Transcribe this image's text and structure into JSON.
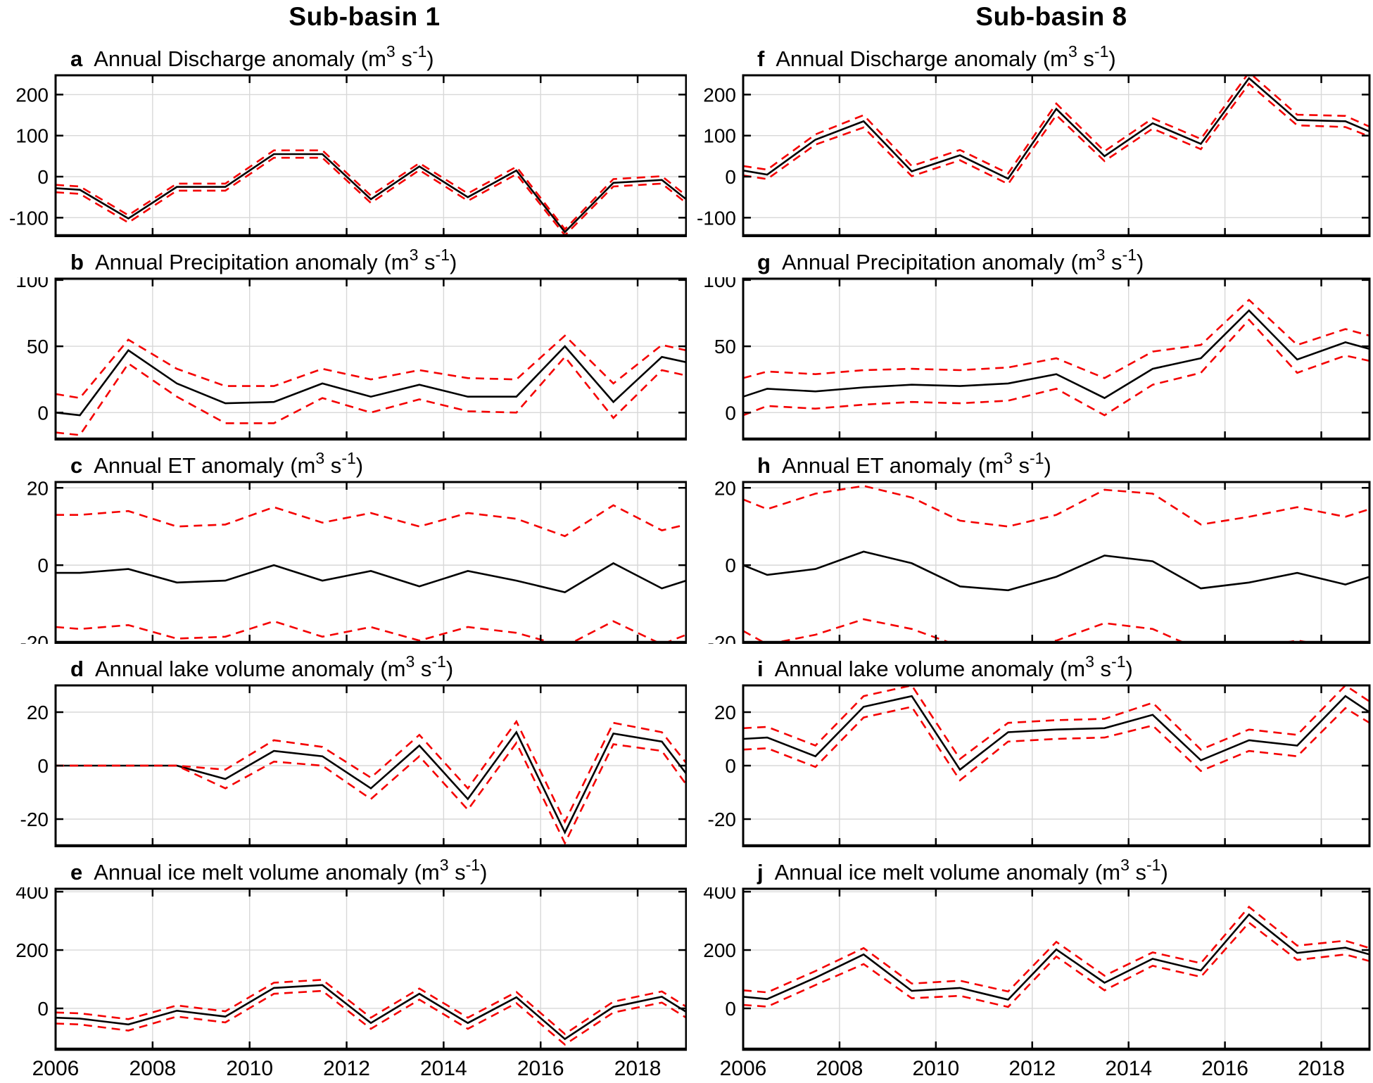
{
  "titles": [
    "Sub-basin 1",
    "Sub-basin 8"
  ],
  "unit": {
    "prefix": "(m",
    "sup1": "3",
    "mid": " s",
    "sup2": "-1",
    "suffix": ")"
  },
  "colors": {
    "mean_line": "#000000",
    "bound_line": "#f40000",
    "grid": "#d8d8d8",
    "axis": "#000000"
  },
  "axis": {
    "xlim": [
      2006,
      2019
    ],
    "x_points": [
      2006,
      2006.5,
      2007.5,
      2008.5,
      2009.5,
      2010.5,
      2011.5,
      2012.5,
      2013.5,
      2014.5,
      2015.5,
      2016.5,
      2017.5,
      2018.5,
      2019
    ],
    "xticks": [
      2006,
      2008,
      2010,
      2012,
      2014,
      2016,
      2018
    ],
    "xtick_labels": [
      "2006",
      "2008",
      "2010",
      "2012",
      "2014",
      "2016",
      "2018"
    ],
    "grid": true,
    "legend": "none"
  },
  "chart_data": [
    {
      "id": "a",
      "letter": "a",
      "subbasin": "Sub-basin 1",
      "type": "line",
      "title": "Annual Discharge anomaly",
      "ylim": [
        -144,
        247
      ],
      "yticks": [
        200,
        100,
        0,
        -100
      ],
      "ytick_labels": [
        "200",
        "100",
        "0",
        "-100"
      ],
      "series": [
        {
          "name": "mean",
          "style": "solid",
          "values": [
            -28,
            -32,
            -102,
            -25,
            -25,
            55,
            55,
            -55,
            25,
            -50,
            15,
            -135,
            -15,
            -8,
            -55
          ]
        },
        {
          "name": "upper-bound",
          "style": "dashed",
          "values": [
            -20,
            -24,
            -94,
            -17,
            -17,
            64,
            64,
            -46,
            33,
            -41,
            24,
            -128,
            -6,
            1,
            -46
          ]
        },
        {
          "name": "lower-bound",
          "style": "dashed",
          "values": [
            -38,
            -42,
            -112,
            -34,
            -34,
            46,
            46,
            -64,
            16,
            -59,
            6,
            -143,
            -24,
            -17,
            -64
          ]
        }
      ]
    },
    {
      "id": "b",
      "letter": "b",
      "subbasin": "Sub-basin 1",
      "type": "line",
      "title": "Annual Precipitation anomaly",
      "ylim": [
        -20,
        101
      ],
      "yticks": [
        100,
        50,
        0
      ],
      "ytick_labels": [
        "100",
        "50",
        "0"
      ],
      "series": [
        {
          "name": "mean",
          "style": "solid",
          "values": [
            0,
            -2,
            47,
            22,
            7,
            8,
            22,
            12,
            21,
            12,
            12,
            50,
            8,
            42,
            38
          ]
        },
        {
          "name": "upper-bound",
          "style": "dashed",
          "values": [
            14,
            11,
            55,
            33,
            20,
            20,
            33,
            25,
            32,
            26,
            25,
            58,
            22,
            51,
            47
          ]
        },
        {
          "name": "lower-bound",
          "style": "dashed",
          "values": [
            -15,
            -17,
            37,
            12,
            -8,
            -8,
            11,
            0,
            10,
            1,
            0,
            42,
            -4,
            32,
            28
          ]
        }
      ]
    },
    {
      "id": "c",
      "letter": "c",
      "subbasin": "Sub-basin 1",
      "type": "line",
      "title": "Annual ET anomaly",
      "ylim": [
        -20,
        21.5
      ],
      "yticks": [
        20,
        0,
        -20
      ],
      "ytick_labels": [
        "20",
        "0",
        "-20"
      ],
      "series": [
        {
          "name": "mean",
          "style": "solid",
          "values": [
            -2,
            -2,
            -1,
            -4.5,
            -4,
            0,
            -4,
            -1.5,
            -5.5,
            -1.5,
            -4,
            -7,
            0.5,
            -6,
            -4
          ]
        },
        {
          "name": "upper-bound",
          "style": "dashed",
          "values": [
            13,
            13,
            14,
            10,
            10.5,
            15,
            11,
            13.5,
            10,
            13.5,
            12,
            7.5,
            15.5,
            9,
            10.5
          ]
        },
        {
          "name": "lower-bound",
          "style": "dashed",
          "values": [
            -16,
            -16.5,
            -15.5,
            -19,
            -18.5,
            -14.5,
            -18.5,
            -16,
            -19.5,
            -16,
            -17.5,
            -21,
            -14.5,
            -20.5,
            -18
          ]
        }
      ]
    },
    {
      "id": "d",
      "letter": "d",
      "subbasin": "Sub-basin 1",
      "type": "line",
      "title": "Annual lake volume anomaly",
      "ylim": [
        -30,
        30
      ],
      "yticks": [
        20,
        0,
        -20
      ],
      "ytick_labels": [
        "20",
        "0",
        "-20"
      ],
      "series": [
        {
          "name": "mean",
          "style": "solid",
          "values": [
            0,
            0,
            0,
            0,
            -5,
            5.5,
            3.5,
            -8.5,
            7.5,
            -12.5,
            12.5,
            -25,
            12,
            9,
            -3
          ]
        },
        {
          "name": "upper-bound",
          "style": "dashed",
          "values": [
            0,
            0,
            0,
            0,
            -1.5,
            9.5,
            7,
            -4.5,
            11.5,
            -8.5,
            16.5,
            -21,
            16,
            12.5,
            1
          ]
        },
        {
          "name": "lower-bound",
          "style": "dashed",
          "values": [
            0,
            0,
            0,
            0,
            -8.5,
            1.5,
            0,
            -12.5,
            3.5,
            -16.5,
            8.5,
            -29,
            8,
            5.5,
            -7
          ]
        }
      ]
    },
    {
      "id": "e",
      "letter": "e",
      "subbasin": "Sub-basin 1",
      "type": "line",
      "title": "Annual ice melt volume anomaly",
      "ylim": [
        -140,
        410
      ],
      "yticks": [
        400,
        200,
        0
      ],
      "ytick_labels": [
        "400",
        "200",
        "0"
      ],
      "series": [
        {
          "name": "mean",
          "style": "solid",
          "values": [
            -32,
            -35,
            -55,
            -8,
            -28,
            70,
            80,
            -50,
            50,
            -50,
            38,
            -105,
            5,
            40,
            -12
          ]
        },
        {
          "name": "upper-bound",
          "style": "dashed",
          "values": [
            -14,
            -17,
            -37,
            10,
            -10,
            88,
            98,
            -32,
            68,
            -32,
            56,
            -88,
            23,
            58,
            6
          ]
        },
        {
          "name": "lower-bound",
          "style": "dashed",
          "values": [
            -52,
            -55,
            -76,
            -28,
            -48,
            50,
            60,
            -70,
            30,
            -70,
            18,
            -124,
            -14,
            20,
            -32
          ]
        }
      ]
    },
    {
      "id": "f",
      "letter": "f",
      "subbasin": "Sub-basin 8",
      "type": "line",
      "title": "Annual Discharge anomaly",
      "ylim": [
        -144,
        247
      ],
      "yticks": [
        200,
        100,
        0,
        -100
      ],
      "ytick_labels": [
        "200",
        "100",
        "0",
        "-100"
      ],
      "series": [
        {
          "name": "mean",
          "style": "solid",
          "values": [
            15,
            5,
            90,
            135,
            13,
            52,
            -5,
            165,
            50,
            130,
            80,
            240,
            138,
            135,
            110
          ]
        },
        {
          "name": "upper-bound",
          "style": "dashed",
          "values": [
            26,
            17,
            103,
            150,
            26,
            65,
            8,
            178,
            62,
            142,
            92,
            254,
            151,
            148,
            122
          ]
        },
        {
          "name": "lower-bound",
          "style": "dashed",
          "values": [
            3,
            -6,
            78,
            120,
            1,
            40,
            -18,
            150,
            38,
            117,
            67,
            226,
            125,
            121,
            98
          ]
        }
      ]
    },
    {
      "id": "g",
      "letter": "g",
      "subbasin": "Sub-basin 8",
      "type": "line",
      "title": "Annual Precipitation anomaly",
      "ylim": [
        -20,
        101
      ],
      "yticks": [
        100,
        50,
        0
      ],
      "ytick_labels": [
        "100",
        "50",
        "0"
      ],
      "series": [
        {
          "name": "mean",
          "style": "solid",
          "values": [
            12,
            18,
            16,
            19,
            21,
            20,
            22,
            29,
            11,
            33,
            41,
            77,
            40,
            53,
            48
          ]
        },
        {
          "name": "upper-bound",
          "style": "dashed",
          "values": [
            26,
            31,
            29,
            32,
            33,
            32,
            34,
            41,
            26,
            46,
            51,
            85,
            51,
            63,
            58
          ]
        },
        {
          "name": "lower-bound",
          "style": "dashed",
          "values": [
            -2,
            5,
            3,
            6,
            8,
            7,
            9,
            18,
            -2,
            21,
            30,
            70,
            30,
            43,
            39
          ]
        }
      ]
    },
    {
      "id": "h",
      "letter": "h",
      "subbasin": "Sub-basin 8",
      "type": "line",
      "title": "Annual ET anomaly",
      "ylim": [
        -20,
        21.5
      ],
      "yticks": [
        20,
        0,
        -20
      ],
      "ytick_labels": [
        "20",
        "0",
        "-20"
      ],
      "series": [
        {
          "name": "mean",
          "style": "solid",
          "values": [
            0,
            -2.5,
            -1,
            3.5,
            0.5,
            -5.5,
            -6.5,
            -3,
            2.5,
            1,
            -6,
            -4.5,
            -2,
            -5,
            -3
          ]
        },
        {
          "name": "upper-bound",
          "style": "dashed",
          "values": [
            17,
            14.5,
            18.5,
            20.5,
            17.5,
            11.5,
            10,
            13,
            19.5,
            18.5,
            10.5,
            12.5,
            15,
            12.5,
            14.5
          ]
        },
        {
          "name": "lower-bound",
          "style": "dashed",
          "values": [
            -17,
            -20.5,
            -18,
            -14,
            -16.5,
            -21,
            -22,
            -19.5,
            -15,
            -16.5,
            -22,
            -21.5,
            -19.5,
            -21.5,
            -20
          ]
        }
      ]
    },
    {
      "id": "i",
      "letter": "i",
      "subbasin": "Sub-basin 8",
      "type": "line",
      "title": "Annual lake volume anomaly",
      "ylim": [
        -30,
        30
      ],
      "yticks": [
        20,
        0,
        -20
      ],
      "ytick_labels": [
        "20",
        "0",
        "-20"
      ],
      "series": [
        {
          "name": "mean",
          "style": "solid",
          "values": [
            10,
            10.5,
            3.5,
            22,
            26,
            -1.5,
            12.5,
            13.5,
            14,
            19,
            2,
            9.5,
            7.5,
            26,
            20
          ]
        },
        {
          "name": "upper-bound",
          "style": "dashed",
          "values": [
            14,
            14.5,
            7.5,
            26,
            30,
            2.5,
            16,
            17,
            17.5,
            23.5,
            6,
            13.5,
            11.5,
            30,
            24
          ]
        },
        {
          "name": "lower-bound",
          "style": "dashed",
          "values": [
            6,
            6.5,
            -0.5,
            18,
            22,
            -5.5,
            9,
            10,
            10.5,
            15,
            -2,
            5.5,
            3.5,
            21.5,
            16
          ]
        }
      ]
    },
    {
      "id": "j",
      "letter": "j",
      "subbasin": "Sub-basin 8",
      "type": "line",
      "title": "Annual ice melt volume anomaly",
      "ylim": [
        -140,
        410
      ],
      "yticks": [
        400,
        200,
        0
      ],
      "ytick_labels": [
        "400",
        "200",
        "0"
      ],
      "series": [
        {
          "name": "mean",
          "style": "solid",
          "values": [
            40,
            32,
            105,
            185,
            60,
            70,
            30,
            202,
            88,
            170,
            130,
            322,
            190,
            208,
            185
          ]
        },
        {
          "name": "upper-bound",
          "style": "dashed",
          "values": [
            62,
            55,
            128,
            207,
            85,
            95,
            58,
            228,
            112,
            192,
            155,
            348,
            215,
            232,
            207
          ]
        },
        {
          "name": "lower-bound",
          "style": "dashed",
          "values": [
            12,
            6,
            80,
            152,
            35,
            43,
            5,
            178,
            62,
            146,
            108,
            294,
            166,
            185,
            162
          ]
        }
      ]
    }
  ]
}
